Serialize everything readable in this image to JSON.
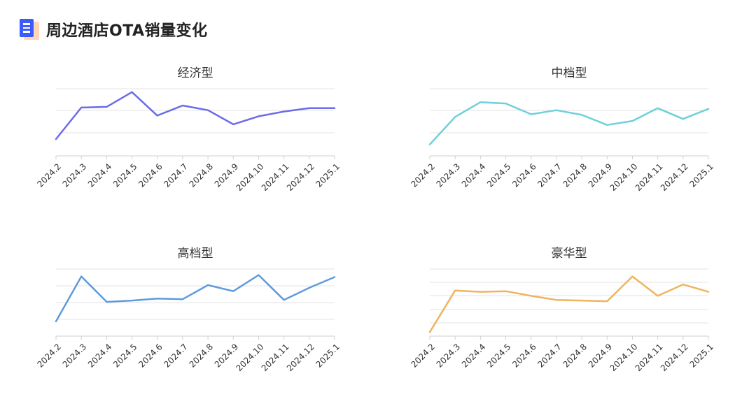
{
  "page": {
    "title": "周边酒店OTA销量变化"
  },
  "icons": {
    "title_badge": "document-list-icon"
  },
  "chart_data": [
    {
      "type": "line",
      "title": "经济型",
      "color": "#6b6ce8",
      "x": [
        "2024.2",
        "2024.3",
        "2024.4",
        "2024.5",
        "2024.6",
        "2024.7",
        "2024.8",
        "2024.9",
        "2024.10",
        "2024.11",
        "2024.12",
        "2025.1"
      ],
      "values": [
        0.25,
        0.72,
        0.73,
        0.95,
        0.6,
        0.75,
        0.68,
        0.47,
        0.59,
        0.66,
        0.71,
        0.71
      ],
      "ylim": [
        0,
        1
      ],
      "grid": true,
      "legend": "none"
    },
    {
      "type": "line",
      "title": "中档型",
      "color": "#6fd0da",
      "x": [
        "2024.2",
        "2024.3",
        "2024.4",
        "2024.5",
        "2024.6",
        "2024.7",
        "2024.8",
        "2024.9",
        "2024.10",
        "2024.11",
        "2024.12",
        "2025.1"
      ],
      "values": [
        0.17,
        0.58,
        0.8,
        0.78,
        0.62,
        0.68,
        0.61,
        0.46,
        0.52,
        0.71,
        0.55,
        0.7
      ],
      "ylim": [
        0,
        1
      ],
      "grid": true,
      "legend": "none"
    },
    {
      "type": "line",
      "title": "高档型",
      "color": "#5f9bdc",
      "x": [
        "2024.2",
        "2024.3",
        "2024.4",
        "2024.5",
        "2024.6",
        "2024.7",
        "2024.8",
        "2024.9",
        "2024.10",
        "2024.11",
        "2024.12",
        "2025.1"
      ],
      "values": [
        0.22,
        0.89,
        0.51,
        0.53,
        0.56,
        0.55,
        0.76,
        0.67,
        0.91,
        0.54,
        0.72,
        0.88
      ],
      "ylim": [
        0,
        1
      ],
      "grid": true,
      "legend": "none"
    },
    {
      "type": "line",
      "title": "豪华型",
      "color": "#efb45f",
      "x": [
        "2024.2",
        "2024.3",
        "2024.4",
        "2024.5",
        "2024.6",
        "2024.7",
        "2024.8",
        "2024.9",
        "2024.10",
        "2024.11",
        "2024.12",
        "2025.1"
      ],
      "values": [
        0.06,
        0.68,
        0.66,
        0.67,
        0.6,
        0.54,
        0.53,
        0.52,
        0.89,
        0.6,
        0.77,
        0.66
      ],
      "ylim": [
        0,
        1
      ],
      "grid": true,
      "legend": "none"
    }
  ]
}
